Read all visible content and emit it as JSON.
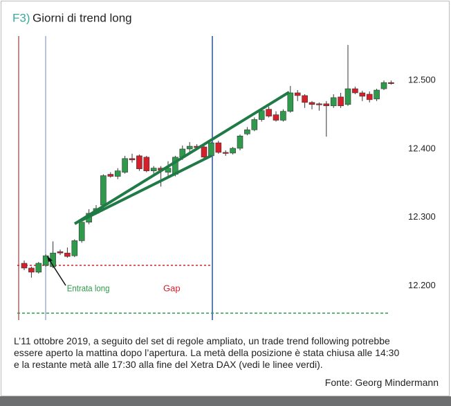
{
  "figure_label": "F3)",
  "caption": [
    "L’11 ottobre 2019, a seguito del set di regole ampliato, un trade trend following potrebbe",
    "essere aperto la mattina dopo l’apertura. La metà della posizione è stata chiusa alle 14:30",
    "e la restante metà alle 17:30 alla fine del Xetra DAX (vedi le linee verdi)."
  ],
  "source": "Fonte: Georg Mindermann",
  "chart_data": {
    "type": "candlestick",
    "title": "Giorni di trend long",
    "up_color": "#2f9a4c",
    "down_color": "#d3202a",
    "open": [
      12233,
      12226,
      12220,
      12230,
      12228,
      12250,
      12248,
      12244,
      12266,
      12293,
      12306,
      12318,
      12363,
      12360,
      12366,
      12386,
      12390,
      12388,
      12368,
      12372,
      12366,
      12363,
      12388,
      12400,
      12404,
      12403,
      12390,
      12409,
      12395,
      12394,
      12401,
      12422,
      12428,
      12443,
      12458,
      12450,
      12442,
      12455,
      12482,
      12478,
      12468,
      12466,
      12466,
      12463,
      12476,
      12465,
      12488,
      12482,
      12480,
      12473,
      12488,
      12497
    ],
    "high": [
      12237,
      12228,
      12235,
      12246,
      12265,
      12253,
      12256,
      12268,
      12298,
      12312,
      12318,
      12363,
      12366,
      12372,
      12390,
      12393,
      12392,
      12390,
      12375,
      12375,
      12382,
      12390,
      12405,
      12410,
      12407,
      12406,
      12410,
      12412,
      12398,
      12403,
      12421,
      12432,
      12446,
      12460,
      12462,
      12455,
      12458,
      12492,
      12486,
      12480,
      12470,
      12468,
      12470,
      12480,
      12482,
      12552,
      12491,
      12485,
      12484,
      12488,
      12500,
      12500
    ],
    "low": [
      12223,
      12212,
      12218,
      12228,
      12226,
      12245,
      12241,
      12242,
      12263,
      12290,
      12304,
      12313,
      12358,
      12356,
      12364,
      12380,
      12368,
      12366,
      12364,
      12345,
      12360,
      12360,
      12384,
      12396,
      12398,
      12385,
      12388,
      12393,
      12390,
      12392,
      12398,
      12420,
      12426,
      12440,
      12446,
      12440,
      12440,
      12453,
      12470,
      12460,
      12458,
      12456,
      12418,
      12460,
      12460,
      12463,
      12480,
      12470,
      12468,
      12470,
      12486,
      12494
    ],
    "close": [
      12226,
      12220,
      12233,
      12244,
      12248,
      12248,
      12243,
      12266,
      12293,
      12306,
      12313,
      12361,
      12360,
      12368,
      12386,
      12384,
      12371,
      12368,
      12372,
      12369,
      12372,
      12388,
      12400,
      12404,
      12402,
      12388,
      12409,
      12395,
      12394,
      12401,
      12419,
      12428,
      12443,
      12456,
      12448,
      12442,
      12455,
      12482,
      12478,
      12468,
      12465,
      12465,
      12463,
      12475,
      12463,
      12488,
      12482,
      12477,
      12472,
      12486,
      12497,
      12496
    ],
    "ylim": [
      12150,
      12565
    ],
    "yticks": [
      {
        "value": 12200,
        "label": "12.200"
      },
      {
        "value": 12300,
        "label": "12.300"
      },
      {
        "value": 12400,
        "label": "12.400"
      },
      {
        "value": 12500,
        "label": "12.500"
      }
    ],
    "annotations": [
      "Entrata long",
      "Gap"
    ]
  }
}
